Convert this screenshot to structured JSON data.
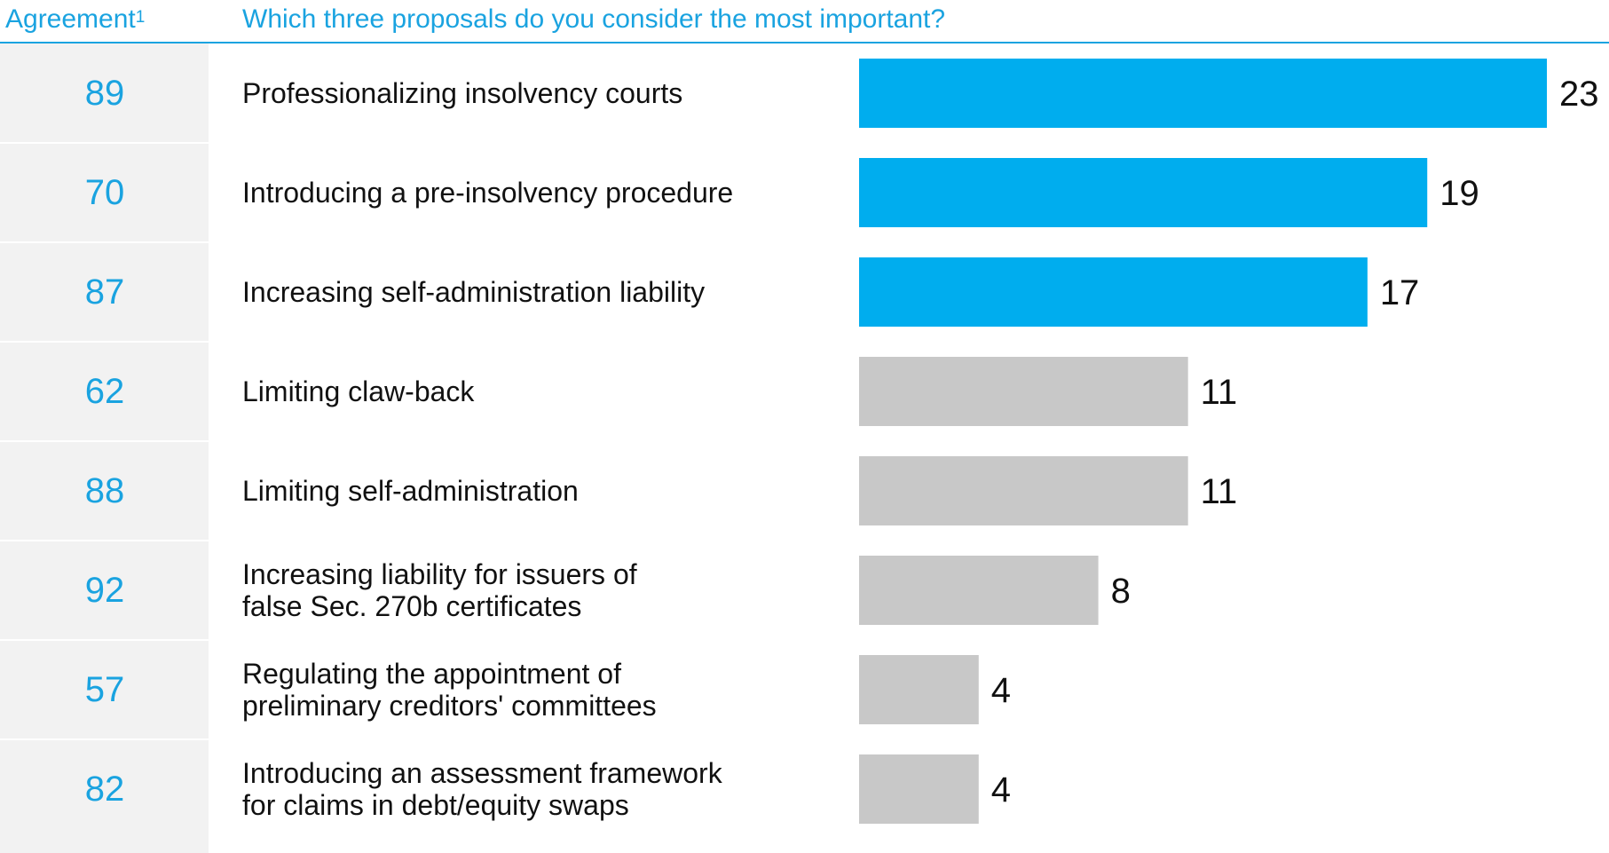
{
  "header": {
    "agreement_label": "Agreement",
    "agreement_footnote": "1",
    "question": "Which three proposals do you consider the most important?"
  },
  "colors": {
    "accent": "#00adee",
    "header_text": "#1aa3e0",
    "agreement_text": "#1aa3e0",
    "muted_bar": "#c8c8c8",
    "agreement_panel": "#f2f2f2",
    "divider": "#ffffff"
  },
  "chart_data": {
    "type": "bar",
    "orientation": "horizontal",
    "title": "Which three proposals do you consider the most important?",
    "xlim": [
      0,
      23
    ],
    "grid": false,
    "legend": "none",
    "categories": [
      "Professionalizing insolvency courts",
      "Introducing a pre-insolvency procedure",
      "Increasing self-administration liability",
      "Limiting claw-back",
      "Limiting self-administration",
      "Increasing liability for issuers of false Sec. 270b certificates",
      "Regulating the appointment of preliminary creditors' committees",
      "Introducing an assessment framework for claims in debt/equity swaps"
    ],
    "category_lines": [
      [
        "Professionalizing insolvency courts"
      ],
      [
        "Introducing a pre-insolvency procedure"
      ],
      [
        "Increasing self-administration liability"
      ],
      [
        "Limiting claw-back"
      ],
      [
        "Limiting self-administration"
      ],
      [
        "Increasing liability for issuers of",
        "false Sec. 270b certificates"
      ],
      [
        "Regulating the appointment of",
        "preliminary creditors' committees"
      ],
      [
        "Introducing an assessment framework",
        "for claims in debt/equity swaps"
      ]
    ],
    "values": [
      23,
      19,
      17,
      11,
      11,
      8,
      4,
      4
    ],
    "highlighted": [
      true,
      true,
      true,
      false,
      false,
      false,
      false,
      false
    ],
    "agreement": [
      89,
      70,
      87,
      62,
      88,
      92,
      57,
      82
    ]
  }
}
